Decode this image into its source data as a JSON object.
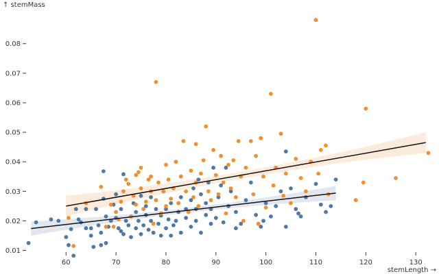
{
  "chart_data": {
    "type": "scatter",
    "xlabel": "stemLength →",
    "ylabel": "↑ stemMass",
    "xlim": [
      52,
      133
    ],
    "ylim": [
      0.0085,
      0.092
    ],
    "x_ticks": [
      "60",
      "70",
      "80",
      "90",
      "100",
      "110",
      "120",
      "130"
    ],
    "y_ticks": [
      "0.01",
      "0.02",
      "0.03",
      "0.04",
      "0.05",
      "0.06",
      "0.07",
      "0.08"
    ],
    "grid": false,
    "legend": "none",
    "series": [
      {
        "color": "#4e79a7",
        "regression": {
          "x": [
            53,
            114
          ],
          "y": [
            0.0174,
            0.0294
          ],
          "band_color": "#dde3ec"
        },
        "points": [
          [
            52.5,
            0.0125
          ],
          [
            54,
            0.0195
          ],
          [
            57,
            0.0205
          ],
          [
            58.5,
            0.02
          ],
          [
            60,
            0.0145
          ],
          [
            60.5,
            0.0118
          ],
          [
            61,
            0.0172
          ],
          [
            61.5,
            0.0082
          ],
          [
            62,
            0.024
          ],
          [
            62.5,
            0.0205
          ],
          [
            63,
            0.0195
          ],
          [
            64,
            0.0175
          ],
          [
            64,
            0.024
          ],
          [
            65,
            0.015
          ],
          [
            65,
            0.0175
          ],
          [
            65.5,
            0.0112
          ],
          [
            66,
            0.024
          ],
          [
            66.5,
            0.0185
          ],
          [
            67,
            0.016
          ],
          [
            67,
            0.0118
          ],
          [
            67.5,
            0.0275
          ],
          [
            67.5,
            0.0368
          ],
          [
            68,
            0.0125
          ],
          [
            68,
            0.0215
          ],
          [
            68.5,
            0.018
          ],
          [
            69,
            0.02
          ],
          [
            69.5,
            0.0255
          ],
          [
            70,
            0.021
          ],
          [
            70,
            0.029
          ],
          [
            70.5,
            0.0175
          ],
          [
            71,
            0.0165
          ],
          [
            71,
            0.024
          ],
          [
            71.5,
            0.0155
          ],
          [
            71.5,
            0.0358
          ],
          [
            72,
            0.02
          ],
          [
            72.5,
            0.0185
          ],
          [
            73,
            0.0215
          ],
          [
            73,
            0.0145
          ],
          [
            73.5,
            0.026
          ],
          [
            74,
            0.023
          ],
          [
            74,
            0.0175
          ],
          [
            74.5,
            0.02
          ],
          [
            75,
            0.0155
          ],
          [
            75,
            0.0285
          ],
          [
            75.5,
            0.0185
          ],
          [
            76,
            0.022
          ],
          [
            76,
            0.025
          ],
          [
            76.5,
            0.017
          ],
          [
            77,
            0.02
          ],
          [
            77,
            0.028
          ],
          [
            77.5,
            0.016
          ],
          [
            78,
            0.024
          ],
          [
            78.5,
            0.019
          ],
          [
            79,
            0.0218
          ],
          [
            79,
            0.015
          ],
          [
            79.5,
            0.03
          ],
          [
            80,
            0.0175
          ],
          [
            80,
            0.024
          ],
          [
            80.5,
            0.0205
          ],
          [
            81,
            0.015
          ],
          [
            81,
            0.026
          ],
          [
            81.5,
            0.0185
          ],
          [
            82,
            0.02
          ],
          [
            82.5,
            0.023
          ],
          [
            83,
            0.016
          ],
          [
            83,
            0.028
          ],
          [
            84,
            0.021
          ],
          [
            84,
            0.024
          ],
          [
            85,
            0.018
          ],
          [
            85,
            0.027
          ],
          [
            85.5,
            0.031
          ],
          [
            86,
            0.02
          ],
          [
            86,
            0.024
          ],
          [
            86.5,
            0.034
          ],
          [
            87,
            0.016
          ],
          [
            87,
            0.029
          ],
          [
            88,
            0.022
          ],
          [
            88,
            0.026
          ],
          [
            88.5,
            0.033
          ],
          [
            89,
            0.019
          ],
          [
            89,
            0.024
          ],
          [
            89.5,
            0.038
          ],
          [
            90,
            0.021
          ],
          [
            90.5,
            0.028
          ],
          [
            91,
            0.032
          ],
          [
            91.5,
            0.0195
          ],
          [
            92,
            0.038
          ],
          [
            92.5,
            0.025
          ],
          [
            93,
            0.03
          ],
          [
            94,
            0.0175
          ],
          [
            94,
            0.023
          ],
          [
            95,
            0.019
          ],
          [
            96,
            0.027
          ],
          [
            97,
            0.033
          ],
          [
            98,
            0.022
          ],
          [
            99,
            0.018
          ],
          [
            99.5,
            0.02
          ],
          [
            100,
            0.026
          ],
          [
            101,
            0.0215
          ],
          [
            102,
            0.025
          ],
          [
            103,
            0.03
          ],
          [
            104,
            0.0435
          ],
          [
            104,
            0.018
          ],
          [
            105,
            0.031
          ],
          [
            106,
            0.024
          ],
          [
            106.5,
            0.0225
          ],
          [
            107,
            0.0215
          ],
          [
            108,
            0.028
          ],
          [
            110,
            0.0325
          ],
          [
            111,
            0.0255
          ],
          [
            112,
            0.023
          ],
          [
            113,
            0.025
          ],
          [
            114,
            0.034
          ]
        ]
      },
      {
        "color": "#f28e2b",
        "regression": {
          "x": [
            60,
            132
          ],
          "y": [
            0.025,
            0.0465
          ],
          "band_color": "#fbe7d5"
        },
        "points": [
          [
            60.5,
            0.021
          ],
          [
            61.5,
            0.0115
          ],
          [
            64,
            0.026
          ],
          [
            67,
            0.0315
          ],
          [
            68,
            0.018
          ],
          [
            69,
            0.0255
          ],
          [
            69.5,
            0.018
          ],
          [
            70,
            0.023
          ],
          [
            70.5,
            0.0205
          ],
          [
            71,
            0.0265
          ],
          [
            71.5,
            0.03
          ],
          [
            72,
            0.034
          ],
          [
            72.5,
            0.0325
          ],
          [
            73,
            0.0215
          ],
          [
            73.5,
            0.0285
          ],
          [
            74,
            0.0355
          ],
          [
            74,
            0.0255
          ],
          [
            74.5,
            0.0365
          ],
          [
            75,
            0.031
          ],
          [
            75,
            0.038
          ],
          [
            75.5,
            0.024
          ],
          [
            76,
            0.0265
          ],
          [
            76.5,
            0.034
          ],
          [
            77,
            0.03
          ],
          [
            77,
            0.035
          ],
          [
            77.5,
            0.019
          ],
          [
            78,
            0.067
          ],
          [
            78,
            0.027
          ],
          [
            78.5,
            0.033
          ],
          [
            79,
            0.0225
          ],
          [
            79.5,
            0.03
          ],
          [
            80,
            0.025
          ],
          [
            80,
            0.039
          ],
          [
            80.5,
            0.034
          ],
          [
            81,
            0.0275
          ],
          [
            81.5,
            0.031
          ],
          [
            82,
            0.04
          ],
          [
            82.5,
            0.026
          ],
          [
            83,
            0.035
          ],
          [
            83.5,
            0.047
          ],
          [
            84,
            0.03
          ],
          [
            84.5,
            0.023
          ],
          [
            85,
            0.037
          ],
          [
            85.5,
            0.028
          ],
          [
            86,
            0.033
          ],
          [
            86,
            0.046
          ],
          [
            86.5,
            0.025
          ],
          [
            87,
            0.036
          ],
          [
            87.5,
            0.0405
          ],
          [
            88,
            0.052
          ],
          [
            88.5,
            0.03
          ],
          [
            89,
            0.027
          ],
          [
            89.5,
            0.044
          ],
          [
            90,
            0.0355
          ],
          [
            90.5,
            0.029
          ],
          [
            91,
            0.042
          ],
          [
            91.5,
            0.033
          ],
          [
            92,
            0.0225
          ],
          [
            92.5,
            0.039
          ],
          [
            93,
            0.031
          ],
          [
            93.5,
            0.0405
          ],
          [
            94,
            0.028
          ],
          [
            94.5,
            0.047
          ],
          [
            95,
            0.035
          ],
          [
            95.5,
            0.02
          ],
          [
            96,
            0.038
          ],
          [
            97,
            0.047
          ],
          [
            97.5,
            0.029
          ],
          [
            98,
            0.042
          ],
          [
            98.5,
            0.019
          ],
          [
            99,
            0.048
          ],
          [
            99.5,
            0.035
          ],
          [
            100,
            0.0245
          ],
          [
            101,
            0.063
          ],
          [
            101.5,
            0.032
          ],
          [
            102,
            0.038
          ],
          [
            103,
            0.0495
          ],
          [
            103.5,
            0.0285
          ],
          [
            104,
            0.036
          ],
          [
            105,
            0.026
          ],
          [
            106,
            0.041
          ],
          [
            107,
            0.0345
          ],
          [
            108,
            0.03
          ],
          [
            109,
            0.04
          ],
          [
            110,
            0.088
          ],
          [
            110.5,
            0.036
          ],
          [
            111,
            0.044
          ],
          [
            112,
            0.0455
          ],
          [
            112.5,
            0.029
          ],
          [
            118,
            0.027
          ],
          [
            119.5,
            0.033
          ],
          [
            120,
            0.058
          ],
          [
            126,
            0.0345
          ],
          [
            132.5,
            0.043
          ]
        ]
      }
    ]
  }
}
